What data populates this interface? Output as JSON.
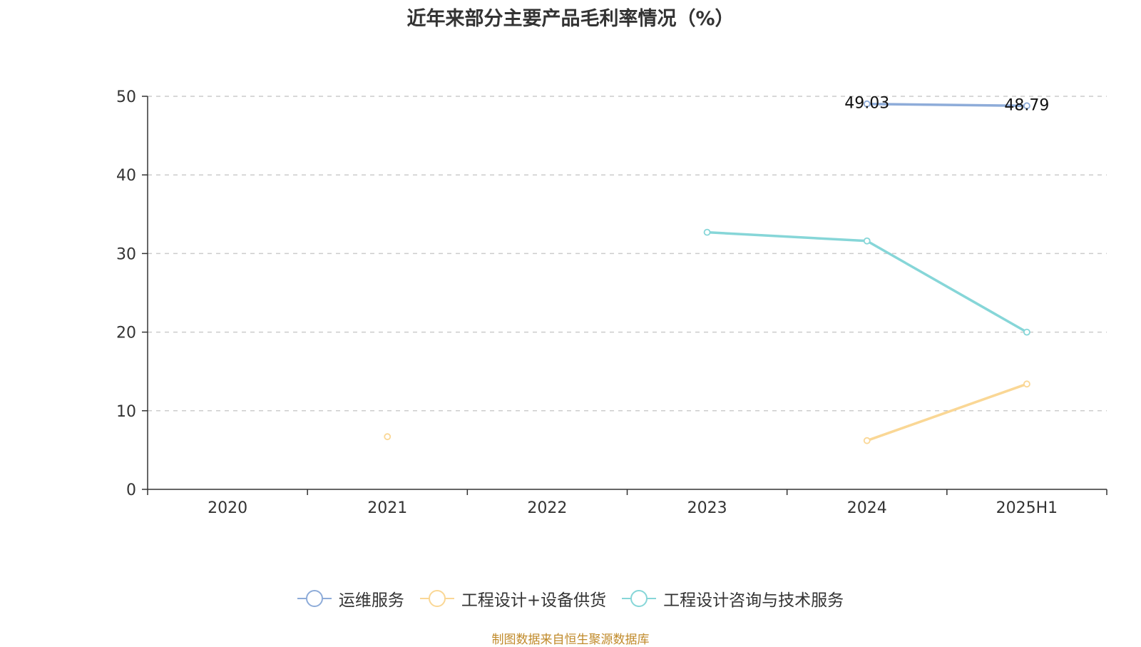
{
  "title": "近年来部分主要产品毛利率情况（%）",
  "source": "制图数据来自恒生聚源数据库",
  "chart_data": {
    "type": "line",
    "categories": [
      "2020",
      "2021",
      "2022",
      "2023",
      "2024",
      "2025H1"
    ],
    "ylim": [
      0,
      50
    ],
    "yticks": [
      0,
      10,
      20,
      30,
      40,
      50
    ],
    "grid": true,
    "legend_position": "bottom",
    "series": [
      {
        "name": "运维服务",
        "color": "#8eacd9",
        "values": [
          null,
          null,
          null,
          null,
          49.03,
          48.79
        ],
        "labels": [
          null,
          null,
          null,
          null,
          "49.03",
          "48.79"
        ]
      },
      {
        "name": "工程设计+设备供货",
        "color": "#fad795",
        "values": [
          null,
          6.7,
          null,
          null,
          6.2,
          13.4
        ],
        "labels": [
          null,
          null,
          null,
          null,
          null,
          null
        ]
      },
      {
        "name": "工程设计咨询与技术服务",
        "color": "#86d6d8",
        "values": [
          null,
          null,
          null,
          32.7,
          31.6,
          20.0
        ],
        "labels": [
          null,
          null,
          null,
          null,
          null,
          null
        ]
      }
    ]
  }
}
